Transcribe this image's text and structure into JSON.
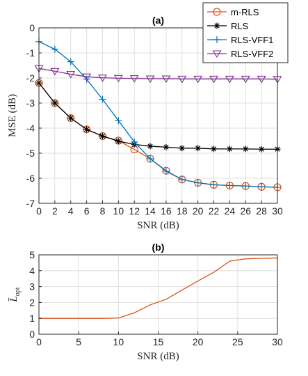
{
  "chart_data": [
    {
      "type": "line",
      "title": "(a)",
      "xlabel": "SNR (dB)",
      "ylabel": "MSE (dB)",
      "xlim": [
        0,
        30
      ],
      "ylim": [
        -7,
        0
      ],
      "xticks": [
        0,
        2,
        4,
        6,
        8,
        10,
        12,
        14,
        16,
        18,
        20,
        22,
        24,
        26,
        28,
        30
      ],
      "yticks": [
        -7,
        -6,
        -5,
        -4,
        -3,
        -2,
        -1,
        0
      ],
      "grid": true,
      "legend": "top-right",
      "x": [
        0,
        2,
        4,
        6,
        8,
        10,
        12,
        14,
        16,
        18,
        20,
        22,
        24,
        26,
        28,
        30
      ],
      "series": [
        {
          "name": "m-RLS",
          "color": "#D95319",
          "marker": "circle",
          "values": [
            -2.2,
            -3.0,
            -3.6,
            -4.05,
            -4.32,
            -4.5,
            -4.85,
            -5.22,
            -5.7,
            -6.05,
            -6.18,
            -6.26,
            -6.29,
            -6.31,
            -6.34,
            -6.36
          ]
        },
        {
          "name": "RLS",
          "color": "#000000",
          "marker": "star",
          "values": [
            -2.2,
            -3.0,
            -3.6,
            -4.05,
            -4.32,
            -4.52,
            -4.65,
            -4.72,
            -4.76,
            -4.8,
            -4.8,
            -4.83,
            -4.83,
            -4.83,
            -4.84,
            -4.84
          ]
        },
        {
          "name": "RLS-VFF1",
          "color": "#0072BD",
          "marker": "plus",
          "values": [
            -0.55,
            -0.85,
            -1.35,
            -2.05,
            -2.85,
            -3.7,
            -4.55,
            -5.22,
            -5.72,
            -6.05,
            -6.18,
            -6.26,
            -6.29,
            -6.31,
            -6.34,
            -6.36
          ]
        },
        {
          "name": "RLS-VFF2",
          "color": "#7E2F8E",
          "marker": "triangle-down",
          "values": [
            -1.62,
            -1.73,
            -1.85,
            -1.95,
            -1.99,
            -2.01,
            -2.02,
            -2.03,
            -2.03,
            -2.04,
            -2.04,
            -2.04,
            -2.04,
            -2.04,
            -2.04,
            -2.05
          ]
        }
      ]
    },
    {
      "type": "line",
      "title": "(b)",
      "xlabel": "SNR (dB)",
      "ylabel": "L̄",
      "ylabel_sub": "opt",
      "xlim": [
        0,
        30
      ],
      "ylim": [
        0,
        5
      ],
      "xticks": [
        0,
        5,
        10,
        15,
        20,
        25,
        30
      ],
      "yticks": [
        0,
        1,
        2,
        3,
        4,
        5
      ],
      "grid": true,
      "x": [
        0,
        2,
        4,
        6,
        8,
        10,
        12,
        14,
        16,
        18,
        20,
        22,
        24,
        26,
        28,
        30
      ],
      "series": [
        {
          "color": "#D95319",
          "values": [
            1.0,
            1.0,
            1.0,
            1.0,
            1.0,
            1.02,
            1.35,
            1.85,
            2.2,
            2.78,
            3.35,
            3.9,
            4.6,
            4.75,
            4.78,
            4.8
          ]
        }
      ]
    }
  ]
}
